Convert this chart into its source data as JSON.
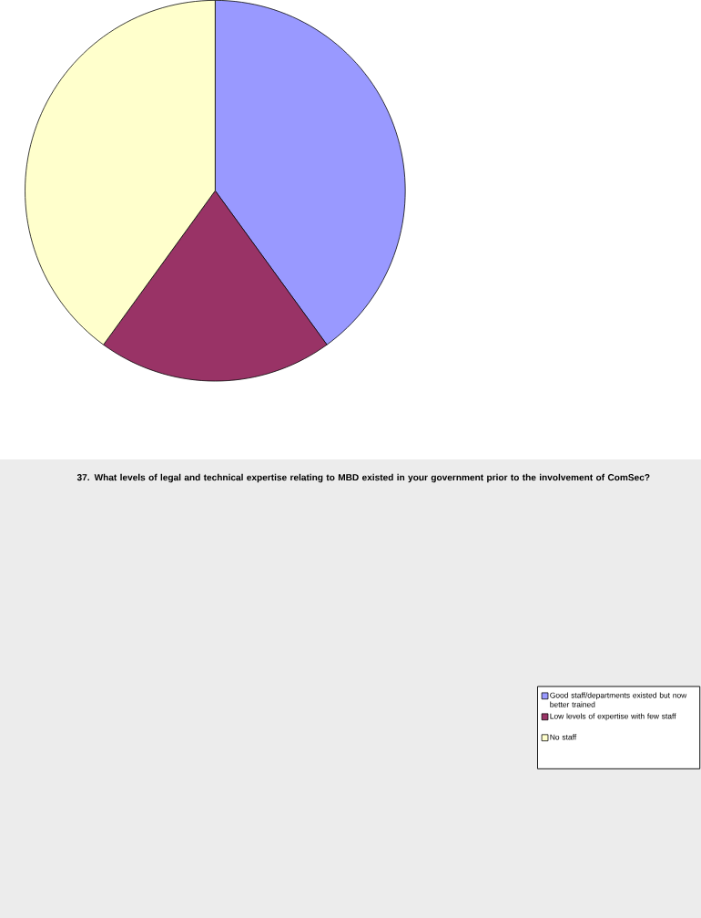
{
  "chart_data": {
    "type": "pie",
    "title": "37. What levels of legal and technical expertise relating to MBD existed in your government prior to the involvement of ComSec?",
    "categories": [
      "Good staff/departments existed but now better trained",
      "Low levels of expertise with few staff",
      "No staff"
    ],
    "values": [
      40,
      20,
      40
    ],
    "colors": [
      "#9999ff",
      "#993366",
      "#ffffcc"
    ],
    "legend": "right"
  }
}
